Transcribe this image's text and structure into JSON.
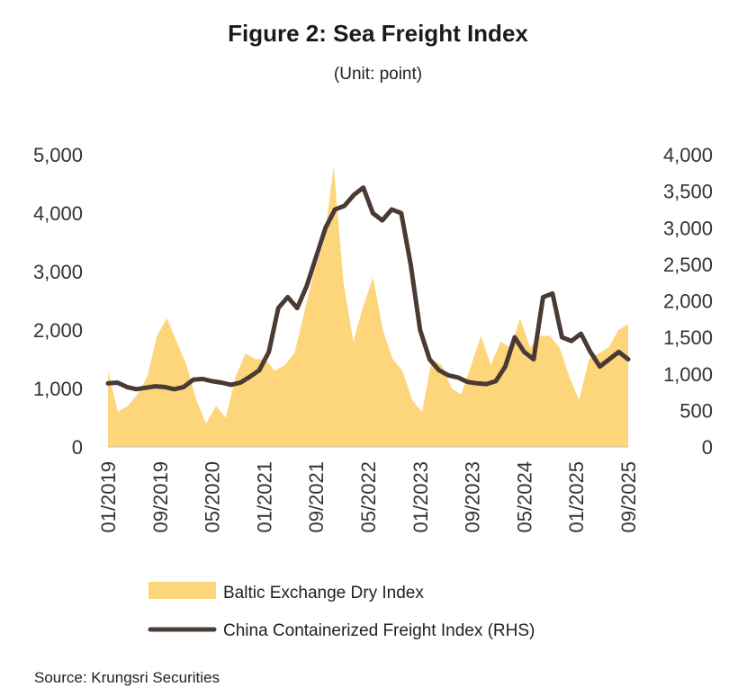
{
  "chart_data": {
    "type": "area+line",
    "title": "Figure 2: Sea Freight Index",
    "subtitle": "(Unit: point)",
    "source": "Source: Krungsri Securities",
    "x_tick_labels": [
      "01/2019",
      "09/2019",
      "05/2020",
      "01/2021",
      "09/2021",
      "05/2022",
      "01/2023",
      "09/2023",
      "05/2024",
      "01/2025",
      "09/2025"
    ],
    "y_left": {
      "min": 0,
      "max": 5000,
      "ticks": [
        0,
        1000,
        2000,
        3000,
        4000,
        5000
      ],
      "tick_labels": [
        "0",
        "1,000",
        "2,000",
        "3,000",
        "4,000",
        "5,000"
      ]
    },
    "y_right": {
      "min": 0,
      "max": 4000,
      "ticks": [
        0,
        500,
        1000,
        1500,
        2000,
        2500,
        3000,
        3500,
        4000
      ],
      "tick_labels": [
        "0",
        "500",
        "1,000",
        "1,500",
        "2,000",
        "2,500",
        "3,000",
        "3,500",
        "4,000"
      ]
    },
    "series": [
      {
        "name": "Baltic Exchange Dry Index",
        "type": "area",
        "axis": "left",
        "color": "#fdd57a",
        "values": [
          1300,
          600,
          700,
          900,
          1200,
          1900,
          2200,
          1800,
          1400,
          800,
          400,
          700,
          500,
          1200,
          1600,
          1500,
          1500,
          1300,
          1400,
          1600,
          2300,
          3000,
          3500,
          4800,
          2800,
          1800,
          2400,
          2900,
          2000,
          1500,
          1300,
          800,
          600,
          1500,
          1400,
          1000,
          900,
          1400,
          1900,
          1400,
          1800,
          1700,
          2200,
          1700,
          1900,
          1900,
          1700,
          1200,
          800,
          1500,
          1600,
          1700,
          2000,
          2100
        ]
      },
      {
        "name": "China Containerized Freight Index (RHS)",
        "type": "line",
        "axis": "right",
        "color": "#4a3a34",
        "values": [
          870,
          880,
          820,
          790,
          810,
          830,
          820,
          790,
          820,
          920,
          930,
          900,
          880,
          850,
          880,
          960,
          1050,
          1300,
          1900,
          2050,
          1900,
          2200,
          2600,
          3000,
          3250,
          3300,
          3450,
          3550,
          3200,
          3100,
          3250,
          3200,
          2500,
          1600,
          1200,
          1050,
          980,
          950,
          890,
          870,
          860,
          900,
          1100,
          1500,
          1300,
          1200,
          2050,
          2100,
          1500,
          1450,
          1550,
          1300,
          1100,
          1200,
          1300,
          1200
        ]
      }
    ],
    "legend_position": "bottom"
  }
}
